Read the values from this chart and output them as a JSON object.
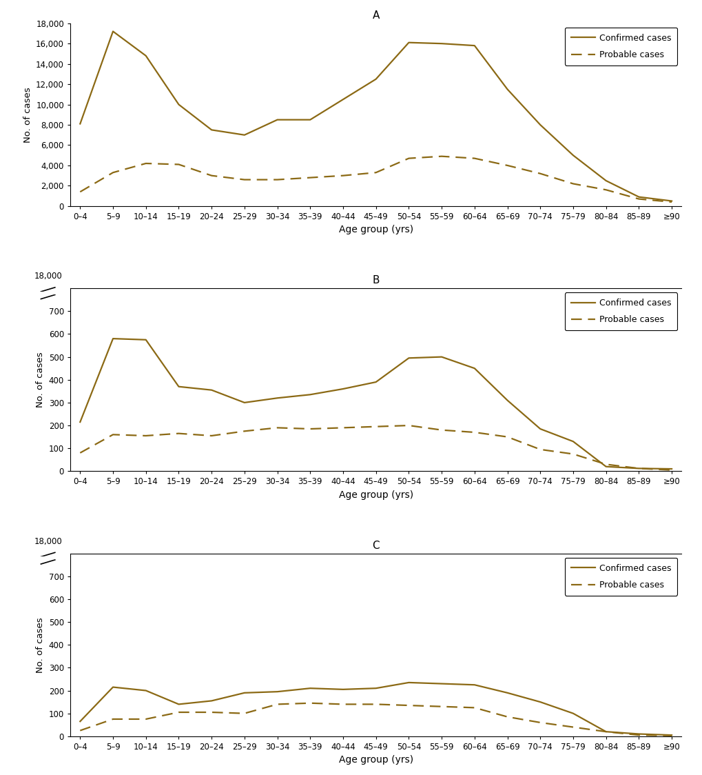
{
  "age_groups": [
    "0–4",
    "5–9",
    "10–14",
    "15–19",
    "20–24",
    "25–29",
    "30–34",
    "35–39",
    "40–44",
    "45–49",
    "50–54",
    "55–59",
    "60–64",
    "65–69",
    "70–74",
    "75–79",
    "80–84",
    "85–89",
    "≥90"
  ],
  "panel_A": {
    "title": "A",
    "confirmed": [
      8100,
      17200,
      14800,
      10000,
      7500,
      7000,
      8500,
      8500,
      10500,
      12500,
      16100,
      16000,
      15800,
      11500,
      8000,
      5000,
      2500,
      900,
      500
    ],
    "probable": [
      1400,
      3300,
      4200,
      4100,
      3000,
      2600,
      2600,
      2800,
      3000,
      3300,
      4700,
      4900,
      4700,
      4000,
      3200,
      2200,
      1600,
      700,
      400
    ],
    "ylim": [
      0,
      18000
    ],
    "yticks": [
      0,
      2000,
      4000,
      6000,
      8000,
      10000,
      12000,
      14000,
      16000,
      18000
    ],
    "broken_axis": false
  },
  "panel_B": {
    "title": "B",
    "confirmed": [
      215,
      580,
      575,
      370,
      355,
      300,
      320,
      335,
      360,
      390,
      495,
      500,
      450,
      310,
      185,
      130,
      20,
      12,
      10
    ],
    "probable": [
      80,
      160,
      155,
      165,
      155,
      175,
      190,
      185,
      190,
      195,
      200,
      180,
      170,
      150,
      95,
      75,
      30,
      12,
      5
    ],
    "ylim": [
      0,
      800
    ],
    "yticks": [
      0,
      100,
      200,
      300,
      400,
      500,
      600,
      700
    ],
    "broken_axis": true
  },
  "panel_C": {
    "title": "C",
    "confirmed": [
      65,
      215,
      200,
      140,
      155,
      190,
      195,
      210,
      205,
      210,
      235,
      230,
      225,
      190,
      150,
      100,
      20,
      10,
      5
    ],
    "probable": [
      25,
      75,
      75,
      105,
      105,
      100,
      140,
      145,
      140,
      140,
      135,
      130,
      125,
      85,
      60,
      40,
      20,
      5,
      3
    ],
    "ylim": [
      0,
      800
    ],
    "yticks": [
      0,
      100,
      200,
      300,
      400,
      500,
      600,
      700
    ],
    "broken_axis": true
  },
  "line_color": "#8B6914",
  "xlabel": "Age group (yrs)",
  "ylabel": "No. of cases",
  "legend_confirmed": "Confirmed cases",
  "legend_probable": "Probable cases",
  "fig_bg": "#ffffff"
}
